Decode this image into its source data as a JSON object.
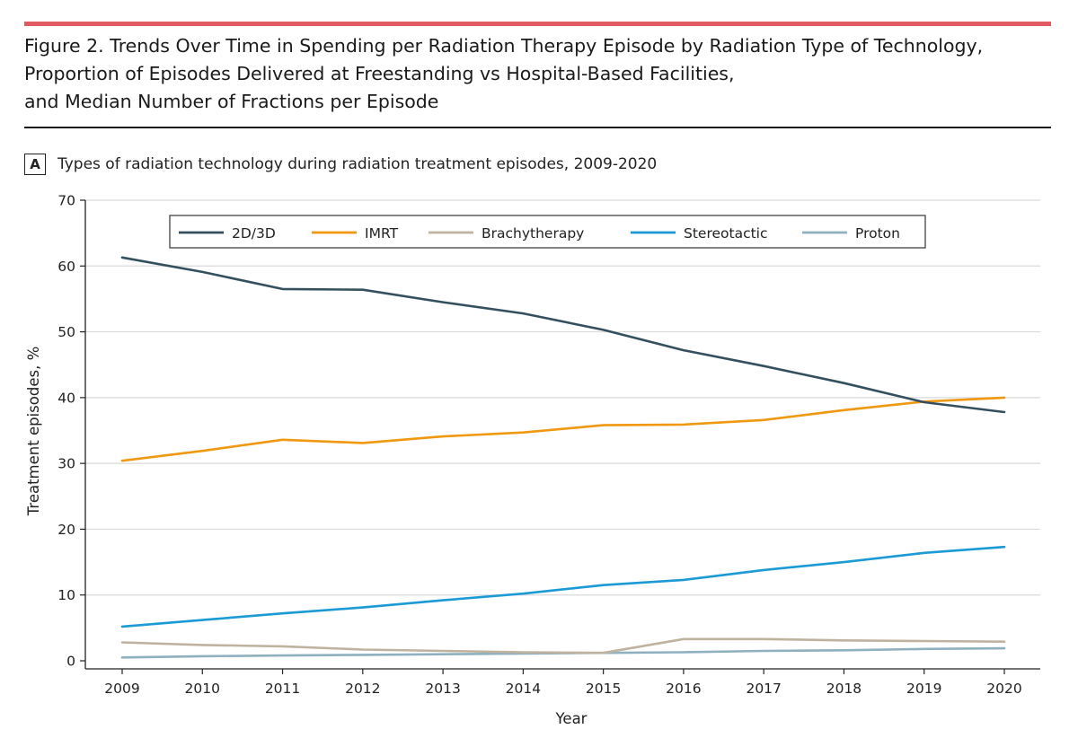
{
  "figure": {
    "title_lines": [
      "Figure 2. Trends Over Time in Spending per Radiation Therapy Episode by Radiation Type of Technology,",
      "Proportion of Episodes Delivered at Freestanding vs Hospital-Based Facilities,",
      "and Median Number of Fractions per Episode"
    ],
    "accent_color": "#e05a5f"
  },
  "panel": {
    "label": "A",
    "title": "Types of radiation technology during radiation treatment episodes, 2009-2020"
  },
  "chart_data": {
    "type": "line",
    "title": "Types of radiation technology during radiation treatment episodes, 2009-2020",
    "xlabel": "Year",
    "ylabel": "Treatment episodes, %",
    "x": [
      2009,
      2010,
      2011,
      2012,
      2013,
      2014,
      2015,
      2016,
      2017,
      2018,
      2019,
      2020
    ],
    "xlim": [
      2009,
      2020
    ],
    "ylim": [
      0,
      70
    ],
    "yticks": [
      0,
      10,
      20,
      30,
      40,
      50,
      60,
      70
    ],
    "grid": "horizontal",
    "legend_position": "top",
    "series": [
      {
        "name": "2D/3D",
        "color": "#34505f",
        "values": [
          61.3,
          59.1,
          56.5,
          56.4,
          54.5,
          52.8,
          50.3,
          47.2,
          44.8,
          42.2,
          39.3,
          37.8
        ]
      },
      {
        "name": "IMRT",
        "color": "#f0980f",
        "values": [
          30.4,
          31.9,
          33.6,
          33.1,
          34.1,
          34.7,
          35.8,
          35.9,
          36.6,
          38.1,
          39.4,
          40.0
        ]
      },
      {
        "name": "Brachytherapy",
        "color": "#bfb3a0",
        "values": [
          2.8,
          2.4,
          2.2,
          1.7,
          1.5,
          1.3,
          1.2,
          3.3,
          3.3,
          3.1,
          3.0,
          2.9
        ]
      },
      {
        "name": "Stereotactic",
        "color": "#1b9ad6",
        "values": [
          5.2,
          6.2,
          7.2,
          8.1,
          9.2,
          10.2,
          11.5,
          12.3,
          13.8,
          15.0,
          16.4,
          17.3
        ]
      },
      {
        "name": "Proton",
        "color": "#8fb0c0",
        "values": [
          0.5,
          0.7,
          0.8,
          0.9,
          1.0,
          1.1,
          1.2,
          1.3,
          1.5,
          1.6,
          1.8,
          1.9
        ]
      }
    ]
  }
}
